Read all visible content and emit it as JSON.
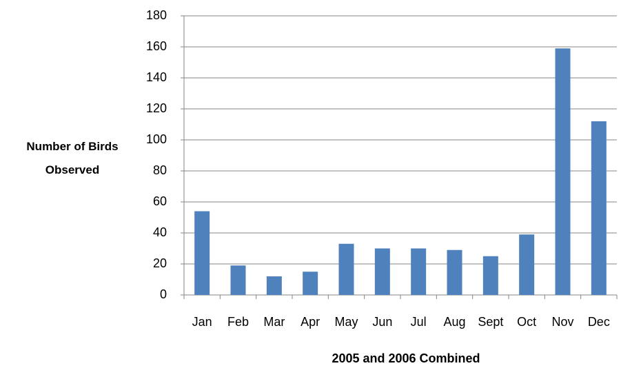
{
  "chart_data": {
    "type": "bar",
    "y_label": "Number of Birds Observed",
    "x_label": "2005 and 2006 Combined",
    "categories": [
      "Jan",
      "Feb",
      "Mar",
      "Apr",
      "May",
      "Jun",
      "Jul",
      "Aug",
      "Sept",
      "Oct",
      "Nov",
      "Dec"
    ],
    "values": [
      54,
      19,
      12,
      15,
      33,
      30,
      30,
      29,
      25,
      39,
      159,
      112
    ],
    "color": "#4f81bd",
    "ylim": [
      0,
      180
    ],
    "yticks": [
      0,
      20,
      40,
      60,
      80,
      100,
      120,
      140,
      160,
      180
    ],
    "grid": true
  }
}
